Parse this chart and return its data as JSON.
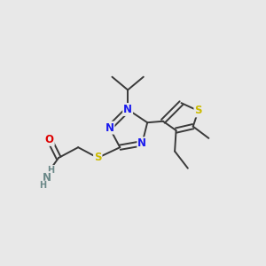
{
  "bg_color": "#e8e8e8",
  "bond_color": "#3a3a3a",
  "bond_width": 1.4,
  "atom_colors": {
    "N": "#1a1aee",
    "S": "#ccbb00",
    "O": "#dd0000",
    "NH2": "#6a8888",
    "C": "#3a3a3a"
  },
  "font_size_atom": 8.5
}
